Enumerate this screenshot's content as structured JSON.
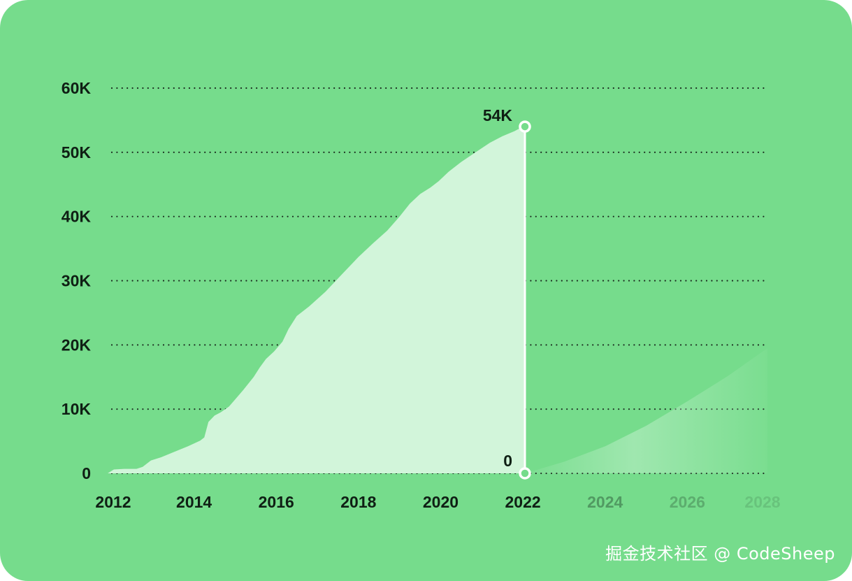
{
  "watermark": "掘金技术社区 @ CodeSheep",
  "colors": {
    "background": "#76dc8c",
    "area_fill": "#d2f5da",
    "text": "#0f1f14",
    "grid": "#1a2a1e"
  },
  "chart_data": {
    "type": "area",
    "title": "",
    "xlabel": "",
    "ylabel": "",
    "xlim": [
      2012,
      2028
    ],
    "ylim": [
      0,
      60000
    ],
    "y_ticks": [
      0,
      10000,
      20000,
      30000,
      40000,
      50000,
      60000
    ],
    "y_tick_labels": [
      "0",
      "10K",
      "20K",
      "30K",
      "40K",
      "50K",
      "60K"
    ],
    "x_ticks": [
      2012,
      2014,
      2016,
      2018,
      2020,
      2022,
      2024,
      2026,
      2028
    ],
    "x_tick_labels": [
      "2012",
      "2014",
      "2016",
      "2018",
      "2020",
      "2022",
      "2024",
      "2026",
      "2028"
    ],
    "x_ticks_faded_from": 2024,
    "grid": "horizontal dotted",
    "series": [
      {
        "style": "solid",
        "x": [
          2011.9,
          2012.05,
          2012.3,
          2012.6,
          2012.75,
          2012.95,
          2013.2,
          2013.5,
          2013.85,
          2014.15,
          2014.25,
          2014.35,
          2014.5,
          2014.65,
          2014.85,
          2015.0,
          2015.2,
          2015.45,
          2015.6,
          2015.75,
          2015.95,
          2016.15,
          2016.3,
          2016.5,
          2016.8,
          2017.2,
          2017.6,
          2018.0,
          2018.35,
          2018.7,
          2019.0,
          2019.25,
          2019.5,
          2019.75,
          2019.95,
          2020.2,
          2020.5,
          2020.85,
          2021.2,
          2021.5,
          2021.8,
          2022.0,
          2022.05
        ],
        "y": [
          0,
          600,
          700,
          700,
          1000,
          2000,
          2500,
          3300,
          4200,
          5100,
          5600,
          8000,
          9000,
          9500,
          10400,
          11500,
          13000,
          15000,
          16500,
          17800,
          19000,
          20500,
          22500,
          24500,
          26000,
          28300,
          31000,
          33700,
          35800,
          37800,
          40000,
          42000,
          43500,
          44500,
          45500,
          47000,
          48500,
          50000,
          51500,
          52500,
          53300,
          54000,
          54000
        ]
      },
      {
        "style": "faded",
        "x": [
          2022.05,
          2023.0,
          2024.0,
          2025.0,
          2026.0,
          2027.0,
          2027.95
        ],
        "y": [
          0,
          1800,
          4200,
          7400,
          11200,
          15200,
          19500
        ]
      }
    ],
    "annotations": [
      {
        "x": 2022.05,
        "y": 54000,
        "text": "54K"
      },
      {
        "x": 2022.05,
        "y": 0,
        "text": "0"
      }
    ]
  }
}
